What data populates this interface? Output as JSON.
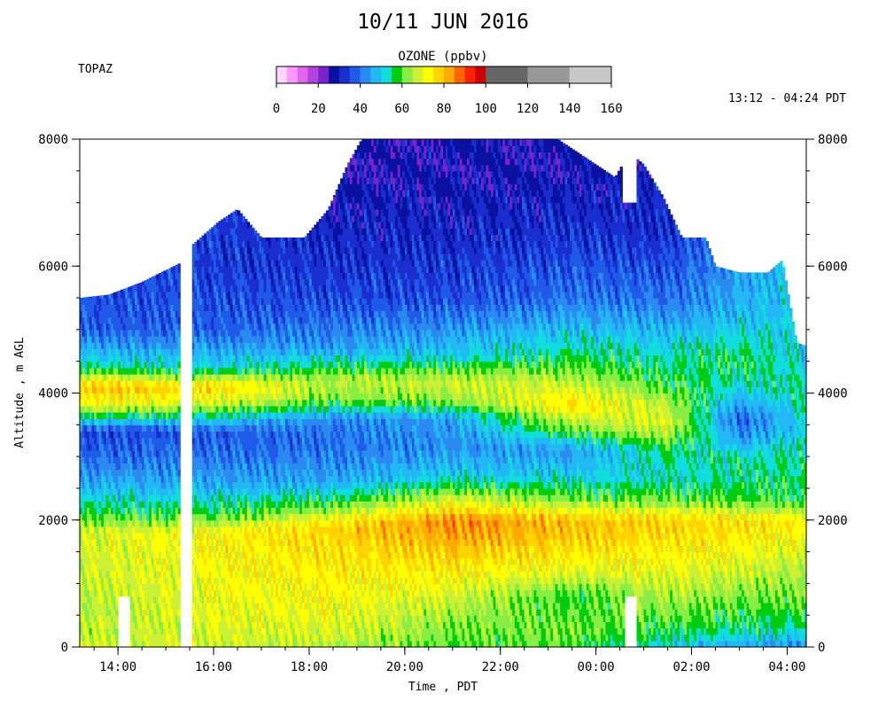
{
  "chart_data": {
    "type": "heatmap",
    "title": "10/11 JUN 2016",
    "instrument_label": "TOPAZ",
    "time_range_label": "13:12 - 04:24 PDT",
    "xlabel": "Time , PDT",
    "ylabel": "Altitude , m AGL",
    "x_unit": "hours since 10 JUN 2016 00:00 PDT",
    "x_range": [
      13.2,
      28.4
    ],
    "x_ticks": [
      {
        "value": 14,
        "label": "14:00"
      },
      {
        "value": 16,
        "label": "16:00"
      },
      {
        "value": 18,
        "label": "18:00"
      },
      {
        "value": 20,
        "label": "20:00"
      },
      {
        "value": 22,
        "label": "22:00"
      },
      {
        "value": 24,
        "label": "00:00"
      },
      {
        "value": 26,
        "label": "02:00"
      },
      {
        "value": 28,
        "label": "04:00"
      }
    ],
    "ylim": [
      0,
      8000
    ],
    "y_ticks": [
      {
        "value": 0,
        "label": "0"
      },
      {
        "value": 2000,
        "label": "2000"
      },
      {
        "value": 4000,
        "label": "4000"
      },
      {
        "value": 6000,
        "label": "6000"
      },
      {
        "value": 8000,
        "label": "8000"
      }
    ],
    "colorbar": {
      "title": "OZONE (ppbv)",
      "ticks": [
        "0",
        "20",
        "40",
        "60",
        "80",
        "100",
        "120",
        "140",
        "160"
      ],
      "range": [
        0,
        160
      ],
      "bins": [
        {
          "lo": 0,
          "hi": 5,
          "color": "#ffd6ff"
        },
        {
          "lo": 5,
          "hi": 10,
          "color": "#ff99ff"
        },
        {
          "lo": 10,
          "hi": 15,
          "color": "#e066ee"
        },
        {
          "lo": 15,
          "hi": 20,
          "color": "#b044dd"
        },
        {
          "lo": 20,
          "hi": 25,
          "color": "#7a22cc"
        },
        {
          "lo": 25,
          "hi": 30,
          "color": "#0a10a0"
        },
        {
          "lo": 30,
          "hi": 35,
          "color": "#1a2ed0"
        },
        {
          "lo": 35,
          "hi": 40,
          "color": "#1f5ae8"
        },
        {
          "lo": 40,
          "hi": 45,
          "color": "#2a8af0"
        },
        {
          "lo": 45,
          "hi": 50,
          "color": "#22b8f5"
        },
        {
          "lo": 50,
          "hi": 55,
          "color": "#11dddd"
        },
        {
          "lo": 55,
          "hi": 60,
          "color": "#00cc11"
        },
        {
          "lo": 60,
          "hi": 65,
          "color": "#88ee44"
        },
        {
          "lo": 65,
          "hi": 70,
          "color": "#ccf033"
        },
        {
          "lo": 70,
          "hi": 75,
          "color": "#ffff00"
        },
        {
          "lo": 75,
          "hi": 80,
          "color": "#ffd400"
        },
        {
          "lo": 80,
          "hi": 85,
          "color": "#ffaa00"
        },
        {
          "lo": 85,
          "hi": 90,
          "color": "#ff6600"
        },
        {
          "lo": 90,
          "hi": 95,
          "color": "#ff2200"
        },
        {
          "lo": 95,
          "hi": 100,
          "color": "#cc0000"
        },
        {
          "lo": 100,
          "hi": 120,
          "color": "#666666"
        },
        {
          "lo": 120,
          "hi": 140,
          "color": "#999999"
        },
        {
          "lo": 140,
          "hi": 160,
          "color": "#c8c8c8"
        }
      ]
    },
    "top_of_profile_m": [
      [
        13.2,
        5500
      ],
      [
        13.8,
        5550
      ],
      [
        14.5,
        5750
      ],
      [
        15.3,
        6050
      ],
      [
        15.5,
        6300
      ],
      [
        16.1,
        6700
      ],
      [
        16.5,
        6900
      ],
      [
        17.0,
        6450
      ],
      [
        17.9,
        6450
      ],
      [
        18.4,
        6900
      ],
      [
        18.8,
        7600
      ],
      [
        19.1,
        8000
      ],
      [
        23.2,
        8000
      ],
      [
        23.8,
        7700
      ],
      [
        24.4,
        7400
      ],
      [
        24.7,
        7800
      ],
      [
        25.0,
        7600
      ],
      [
        25.4,
        7100
      ],
      [
        25.8,
        6450
      ],
      [
        26.3,
        6450
      ],
      [
        26.5,
        6000
      ],
      [
        27.0,
        5900
      ],
      [
        27.6,
        5900
      ],
      [
        27.9,
        6100
      ],
      [
        28.2,
        4800
      ],
      [
        28.35,
        4750
      ]
    ],
    "data_gaps": [
      {
        "t_start": 14.0,
        "t_end": 14.25,
        "z_max": 800
      },
      {
        "t_start": 15.3,
        "t_end": 15.55,
        "z_max": 8000
      },
      {
        "t_start": 24.6,
        "t_end": 24.85,
        "z_max": 800
      },
      {
        "t_start": 24.55,
        "t_end": 24.85,
        "z_min": 7000,
        "z_max": 8000
      }
    ],
    "profile_anchors_ppbv": [
      {
        "t": 13.5,
        "levels": [
          [
            0,
            68
          ],
          [
            600,
            66
          ],
          [
            1200,
            68
          ],
          [
            1800,
            69
          ],
          [
            2100,
            58
          ],
          [
            2500,
            48
          ],
          [
            3000,
            39
          ],
          [
            3400,
            35
          ],
          [
            3800,
            70
          ],
          [
            4100,
            80
          ],
          [
            4400,
            55
          ],
          [
            5000,
            38
          ],
          [
            5800,
            35
          ],
          [
            8000,
            35
          ]
        ]
      },
      {
        "t": 16.0,
        "levels": [
          [
            0,
            68
          ],
          [
            500,
            70
          ],
          [
            1200,
            72
          ],
          [
            1800,
            73
          ],
          [
            2100,
            58
          ],
          [
            2500,
            47
          ],
          [
            3000,
            40
          ],
          [
            3400,
            37
          ],
          [
            3800,
            66
          ],
          [
            4100,
            78
          ],
          [
            4400,
            52
          ],
          [
            5000,
            38
          ],
          [
            6000,
            34
          ],
          [
            8000,
            34
          ]
        ]
      },
      {
        "t": 18.5,
        "levels": [
          [
            0,
            66
          ],
          [
            400,
            70
          ],
          [
            1000,
            73
          ],
          [
            1600,
            76
          ],
          [
            1900,
            78
          ],
          [
            2200,
            62
          ],
          [
            2600,
            46
          ],
          [
            3200,
            39
          ],
          [
            3600,
            42
          ],
          [
            3900,
            62
          ],
          [
            4200,
            66
          ],
          [
            4700,
            45
          ],
          [
            5500,
            35
          ],
          [
            6500,
            31
          ],
          [
            7500,
            27
          ],
          [
            8000,
            26
          ]
        ]
      },
      {
        "t": 21.0,
        "levels": [
          [
            0,
            60
          ],
          [
            300,
            62
          ],
          [
            700,
            67
          ],
          [
            1200,
            74
          ],
          [
            1700,
            82
          ],
          [
            2000,
            85
          ],
          [
            2300,
            70
          ],
          [
            2700,
            50
          ],
          [
            3200,
            43
          ],
          [
            3600,
            45
          ],
          [
            3900,
            64
          ],
          [
            4200,
            68
          ],
          [
            4600,
            50
          ],
          [
            5500,
            36
          ],
          [
            6500,
            31
          ],
          [
            7500,
            28
          ],
          [
            8000,
            28
          ]
        ]
      },
      {
        "t": 23.5,
        "levels": [
          [
            0,
            60
          ],
          [
            300,
            62
          ],
          [
            800,
            58
          ],
          [
            1200,
            70
          ],
          [
            1700,
            78
          ],
          [
            2000,
            80
          ],
          [
            2300,
            63
          ],
          [
            2700,
            50
          ],
          [
            3100,
            44
          ],
          [
            3500,
            65
          ],
          [
            3800,
            76
          ],
          [
            4200,
            66
          ],
          [
            4700,
            54
          ],
          [
            5500,
            40
          ],
          [
            6500,
            33
          ],
          [
            7500,
            28
          ],
          [
            8000,
            28
          ]
        ]
      },
      {
        "t": 25.5,
        "levels": [
          [
            0,
            50
          ],
          [
            300,
            58
          ],
          [
            700,
            64
          ],
          [
            1200,
            70
          ],
          [
            1700,
            76
          ],
          [
            2000,
            78
          ],
          [
            2300,
            62
          ],
          [
            2700,
            52
          ],
          [
            3100,
            56
          ],
          [
            3500,
            70
          ],
          [
            3800,
            66
          ],
          [
            4200,
            58
          ],
          [
            4800,
            50
          ],
          [
            5500,
            40
          ],
          [
            6500,
            32
          ],
          [
            8000,
            30
          ]
        ]
      },
      {
        "t": 27.0,
        "levels": [
          [
            0,
            45
          ],
          [
            300,
            56
          ],
          [
            800,
            62
          ],
          [
            1300,
            70
          ],
          [
            1700,
            74
          ],
          [
            2000,
            76
          ],
          [
            2300,
            60
          ],
          [
            2700,
            54
          ],
          [
            3000,
            54
          ],
          [
            3300,
            44
          ],
          [
            3600,
            38
          ],
          [
            4000,
            50
          ],
          [
            4500,
            58
          ],
          [
            5200,
            48
          ],
          [
            6000,
            44
          ]
        ]
      },
      {
        "t": 28.3,
        "levels": [
          [
            0,
            42
          ],
          [
            300,
            54
          ],
          [
            800,
            62
          ],
          [
            1300,
            66
          ],
          [
            1700,
            72
          ],
          [
            2000,
            74
          ],
          [
            2300,
            58
          ],
          [
            2700,
            56
          ],
          [
            3000,
            54
          ],
          [
            3500,
            50
          ],
          [
            4000,
            55
          ],
          [
            4700,
            50
          ]
        ]
      }
    ]
  }
}
